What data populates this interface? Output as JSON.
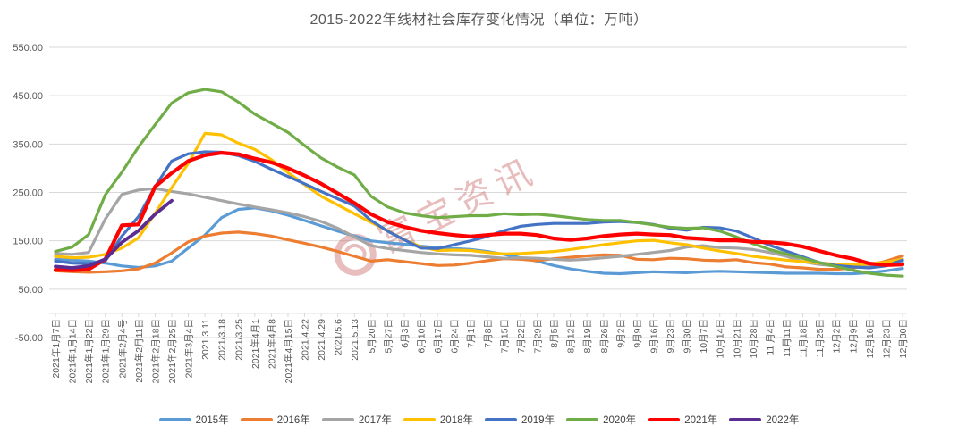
{
  "chart_data": {
    "type": "line",
    "title": "2015-2022年线材社会库存变化情况（单位：万吨）",
    "unit": "万吨",
    "grid": true,
    "legend_position": "bottom",
    "x_label_rotation": 90,
    "ylim": [
      -50,
      550
    ],
    "y_axis": {
      "ticks": [
        {
          "label": "550.00",
          "value": 550
        },
        {
          "label": "450.00",
          "value": 450
        },
        {
          "label": "350.00",
          "value": 350
        },
        {
          "label": "250.00",
          "value": 250
        },
        {
          "label": "150.00",
          "value": 150
        },
        {
          "label": "50.00",
          "value": 50
        },
        {
          "label": "-50.00",
          "value": -50
        }
      ]
    },
    "categories": [
      "2021年1月7日",
      "2021年1月14日",
      "2021年1月22日",
      "2021年1月29日",
      "2021年2月4号",
      "2021年2月11日",
      "2021年2月18日",
      "2021年2月25日",
      "2021年3月4日",
      "2021.3.11",
      "2021/3.18",
      "2021/3.25",
      "2021年4月1",
      "2021年4月8",
      "2021年4月15日",
      "2021.4.22",
      "2021.4.29",
      "2021/5.6",
      "2021.5.13",
      "5月20日",
      "5月27日",
      "6月3日",
      "6月10日",
      "6月17日",
      "6月24日",
      "7月1日",
      "7月8日",
      "7月15日",
      "7月22日",
      "7月29日",
      "8月5日",
      "8月12日",
      "8月19日",
      "8月26日",
      "9月2日",
      "9月9日",
      "9月16日",
      "9月23日",
      "9月30日",
      "10月7日",
      "10月14日",
      "10月21日",
      "10月28日",
      "11 月4日",
      "11月11日",
      "11月18日",
      "11月25日",
      "12月2日",
      "12月9日",
      "12月16日",
      "12月23日",
      "12月30日"
    ],
    "series": [
      {
        "name": "2015年",
        "color": "#5B9BD5",
        "width": 3.2,
        "values": [
          112,
          110,
          108,
          104,
          98,
          95,
          98,
          108,
          135,
          162,
          198,
          215,
          218,
          212,
          203,
          192,
          181,
          170,
          160,
          150,
          146,
          143,
          139,
          136,
          134,
          132,
          128,
          122,
          115,
          108,
          99,
          92,
          87,
          83,
          82,
          84,
          86,
          85,
          84,
          86,
          87,
          86,
          85,
          84,
          83,
          83,
          83,
          82,
          82,
          84,
          88,
          93
        ]
      },
      {
        "name": "2016年",
        "color": "#ED7D31",
        "width": 3.2,
        "values": [
          88,
          86,
          85,
          86,
          88,
          92,
          104,
          125,
          148,
          160,
          166,
          168,
          165,
          160,
          152,
          145,
          137,
          128,
          118,
          108,
          111,
          107,
          103,
          99,
          100,
          104,
          109,
          113,
          112,
          109,
          113,
          116,
          119,
          121,
          120,
          112,
          111,
          114,
          113,
          110,
          109,
          111,
          105,
          102,
          96,
          94,
          91,
          91,
          94,
          100,
          108,
          119
        ]
      },
      {
        "name": "2017年",
        "color": "#A5A5A5",
        "width": 3.2,
        "values": [
          124,
          122,
          126,
          195,
          246,
          255,
          258,
          252,
          247,
          240,
          233,
          226,
          220,
          214,
          208,
          200,
          190,
          176,
          158,
          140,
          134,
          130,
          126,
          123,
          121,
          120,
          117,
          114,
          115,
          114,
          112,
          110,
          112,
          115,
          118,
          122,
          126,
          130,
          137,
          140,
          136,
          135,
          132,
          126,
          118,
          107,
          101,
          98,
          97,
          99,
          102,
          107
        ]
      },
      {
        "name": "2018年",
        "color": "#FFC000",
        "width": 3.2,
        "values": [
          118,
          115,
          116,
          122,
          135,
          156,
          207,
          260,
          310,
          372,
          369,
          352,
          339,
          318,
          291,
          266,
          242,
          224,
          206,
          188,
          171,
          152,
          138,
          130,
          131,
          130,
          126,
          123,
          124,
          126,
          128,
          132,
          137,
          142,
          146,
          150,
          151,
          146,
          142,
          135,
          129,
          124,
          118,
          114,
          110,
          107,
          104,
          102,
          101,
          102,
          106,
          112
        ]
      },
      {
        "name": "2019年",
        "color": "#4472C4",
        "width": 3.2,
        "values": [
          108,
          104,
          103,
          108,
          160,
          200,
          262,
          315,
          330,
          334,
          333,
          326,
          314,
          298,
          283,
          268,
          252,
          237,
          222,
          192,
          170,
          152,
          135,
          134,
          142,
          150,
          159,
          171,
          180,
          184,
          186,
          186,
          186,
          189,
          190,
          188,
          184,
          176,
          172,
          178,
          177,
          170,
          156,
          141,
          129,
          117,
          105,
          99,
          96,
          94,
          98,
          110
        ]
      },
      {
        "name": "2020年",
        "color": "#70AD47",
        "width": 3.2,
        "values": [
          128,
          137,
          163,
          245,
          292,
          344,
          390,
          435,
          456,
          463,
          458,
          437,
          412,
          393,
          374,
          347,
          321,
          302,
          286,
          242,
          220,
          208,
          202,
          198,
          200,
          202,
          202,
          206,
          204,
          205,
          202,
          198,
          194,
          192,
          192,
          188,
          183,
          178,
          176,
          177,
          170,
          158,
          144,
          132,
          123,
          114,
          105,
          97,
          89,
          83,
          79,
          77
        ]
      },
      {
        "name": "2021年",
        "color": "#FF0000",
        "width": 4.2,
        "values": [
          90,
          89,
          91,
          112,
          182,
          184,
          262,
          290,
          315,
          327,
          332,
          329,
          320,
          312,
          300,
          285,
          268,
          248,
          228,
          205,
          189,
          179,
          171,
          166,
          162,
          159,
          162,
          165,
          165,
          162,
          155,
          152,
          155,
          160,
          163,
          165,
          163,
          162,
          156,
          154,
          151,
          151,
          148,
          147,
          144,
          138,
          129,
          120,
          113,
          103,
          100,
          101
        ]
      },
      {
        "name": "2022年",
        "color": "#5B2D90",
        "width": 3.8,
        "values": [
          97,
          94,
          98,
          112,
          147,
          171,
          205,
          233
        ]
      }
    ],
    "watermark": {
      "text": "富宝资讯",
      "color": "#C86464"
    }
  }
}
